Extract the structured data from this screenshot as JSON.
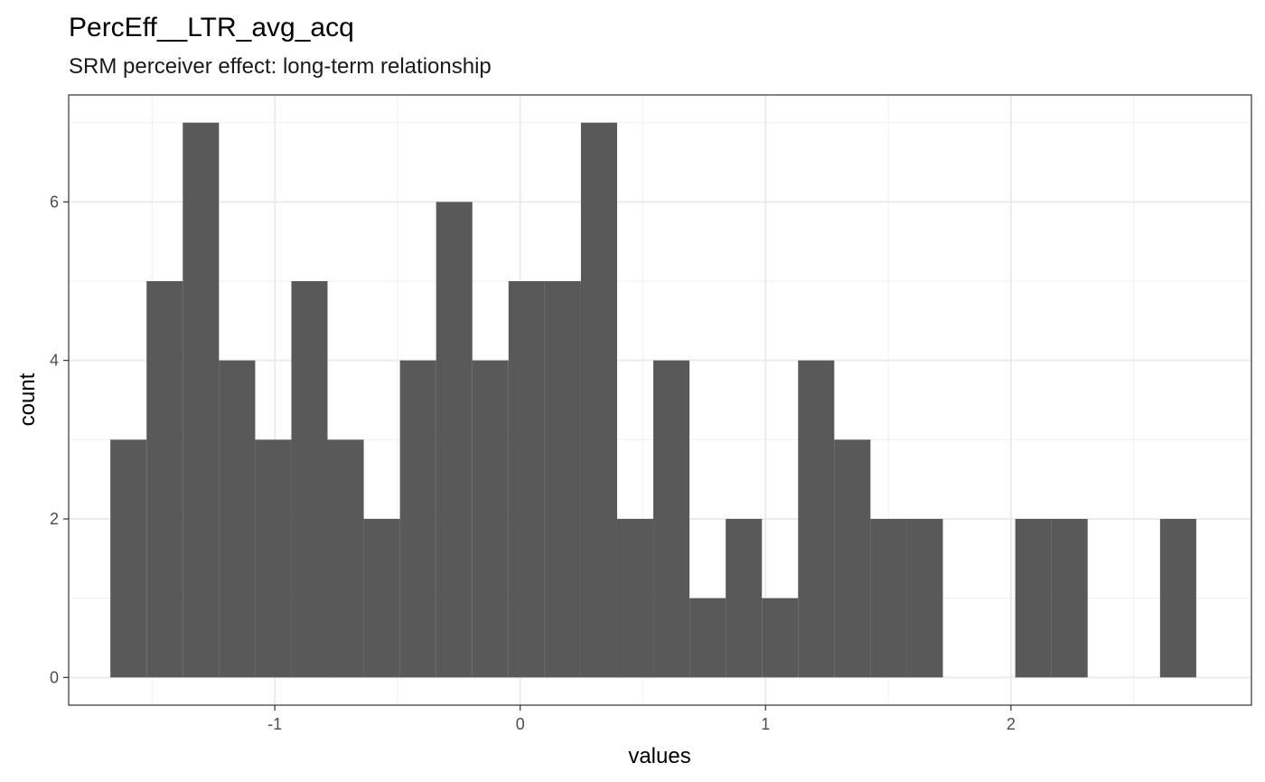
{
  "chart_data": {
    "type": "bar",
    "title": "PercEff__LTR_avg_acq",
    "subtitle": "SRM perceiver effect: long-term relationship",
    "xlabel": "values",
    "ylabel": "count",
    "xlim": [
      -1.84,
      2.98
    ],
    "ylim": [
      -0.35,
      7.35
    ],
    "x_ticks": [
      -1,
      0,
      1,
      2
    ],
    "x_tick_labels": [
      "-1",
      "0",
      "1",
      "2"
    ],
    "y_ticks": [
      0,
      2,
      4,
      6
    ],
    "y_tick_labels": [
      "0",
      "2",
      "4",
      "6"
    ],
    "grid": true,
    "bar_color": "#595959",
    "bins_start": -1.67,
    "bin_width": 0.1475,
    "counts": [
      3,
      5,
      7,
      4,
      3,
      5,
      3,
      2,
      4,
      6,
      4,
      5,
      5,
      7,
      2,
      4,
      1,
      2,
      1,
      4,
      3,
      2,
      2,
      0,
      0,
      2,
      2,
      0,
      0,
      2
    ]
  }
}
